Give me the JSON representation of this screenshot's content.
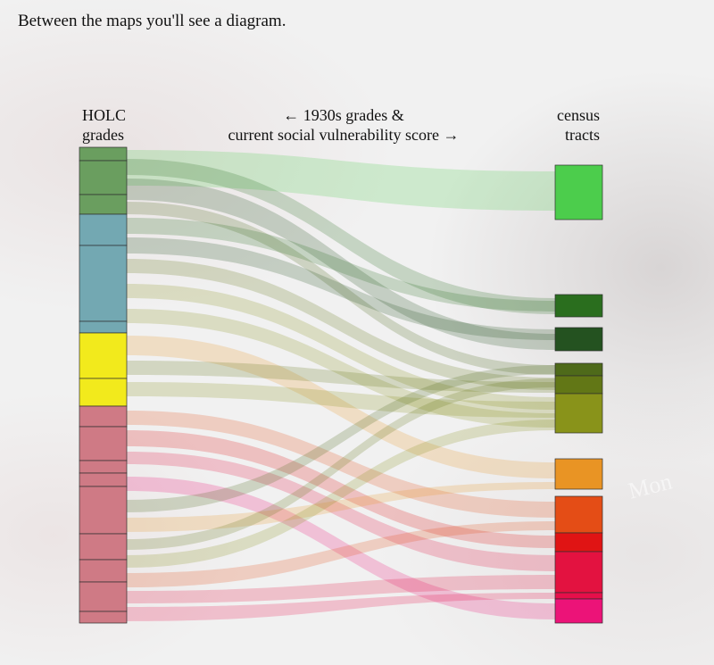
{
  "caption": "Between the maps you'll see a diagram.",
  "header": {
    "left_line1": "HOLC",
    "left_line2": "grades",
    "middle_line1": "← 1930s grades &",
    "middle_line2": "current social vulnerability score →",
    "right_line1": "census",
    "right_line2": "tracts"
  },
  "map_label": "Mon",
  "colors": {
    "A": "#6a9e5f",
    "B": "#73a8b2",
    "C": "#f2ea1c",
    "D": "#cf7a85",
    "t1": "#4ccd4c",
    "t2": "#2a6e1e",
    "t3": "#245220",
    "t4": "#4e6a1a",
    "t5": "#627716",
    "t6": "#89931a",
    "t7": "#e99424",
    "t8": "#e44d16",
    "t9": "#e01414",
    "t10": "#e31240",
    "t11": "#e60f4a",
    "t12": "#ec1378"
  }
}
